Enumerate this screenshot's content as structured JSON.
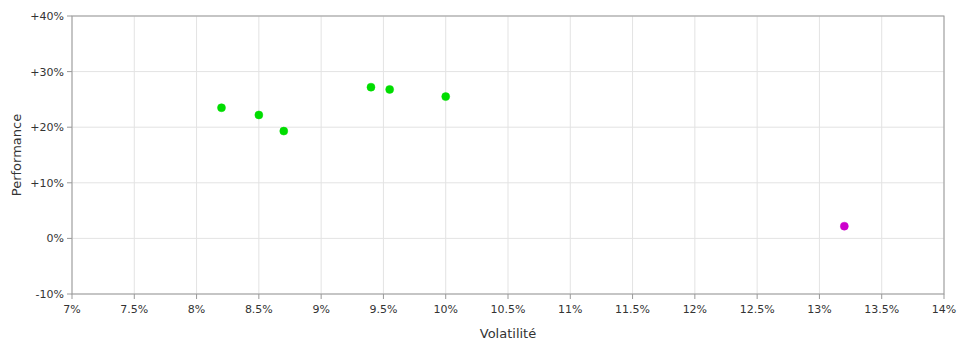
{
  "chart_data": {
    "type": "scatter",
    "xlabel": "Volatilité",
    "ylabel": "Performance",
    "xlim": [
      0.07,
      0.14
    ],
    "ylim": [
      -0.1,
      0.4
    ],
    "xticks": [
      {
        "value": 0.07,
        "label": "7%"
      },
      {
        "value": 0.075,
        "label": "7.5%"
      },
      {
        "value": 0.08,
        "label": "8%"
      },
      {
        "value": 0.085,
        "label": "8.5%"
      },
      {
        "value": 0.09,
        "label": "9%"
      },
      {
        "value": 0.095,
        "label": "9.5%"
      },
      {
        "value": 0.1,
        "label": "10%"
      },
      {
        "value": 0.105,
        "label": "10.5%"
      },
      {
        "value": 0.11,
        "label": "11%"
      },
      {
        "value": 0.115,
        "label": "11.5%"
      },
      {
        "value": 0.12,
        "label": "12%"
      },
      {
        "value": 0.125,
        "label": "12.5%"
      },
      {
        "value": 0.13,
        "label": "13%"
      },
      {
        "value": 0.135,
        "label": "13.5%"
      },
      {
        "value": 0.14,
        "label": "14%"
      }
    ],
    "yticks": [
      {
        "value": -0.1,
        "label": "-10%"
      },
      {
        "value": 0.0,
        "label": "0%"
      },
      {
        "value": 0.1,
        "label": "+10%"
      },
      {
        "value": 0.2,
        "label": "+20%"
      },
      {
        "value": 0.3,
        "label": "+30%"
      },
      {
        "value": 0.4,
        "label": "+40%"
      }
    ],
    "grid": true,
    "series": [
      {
        "color": "#00dd00",
        "x": [
          0.082,
          0.085,
          0.087,
          0.094,
          0.0955,
          0.1
        ],
        "values": [
          0.235,
          0.222,
          0.193,
          0.272,
          0.268,
          0.255
        ]
      },
      {
        "color": "#cc00cc",
        "x": [
          0.132
        ],
        "values": [
          0.022
        ]
      }
    ]
  }
}
